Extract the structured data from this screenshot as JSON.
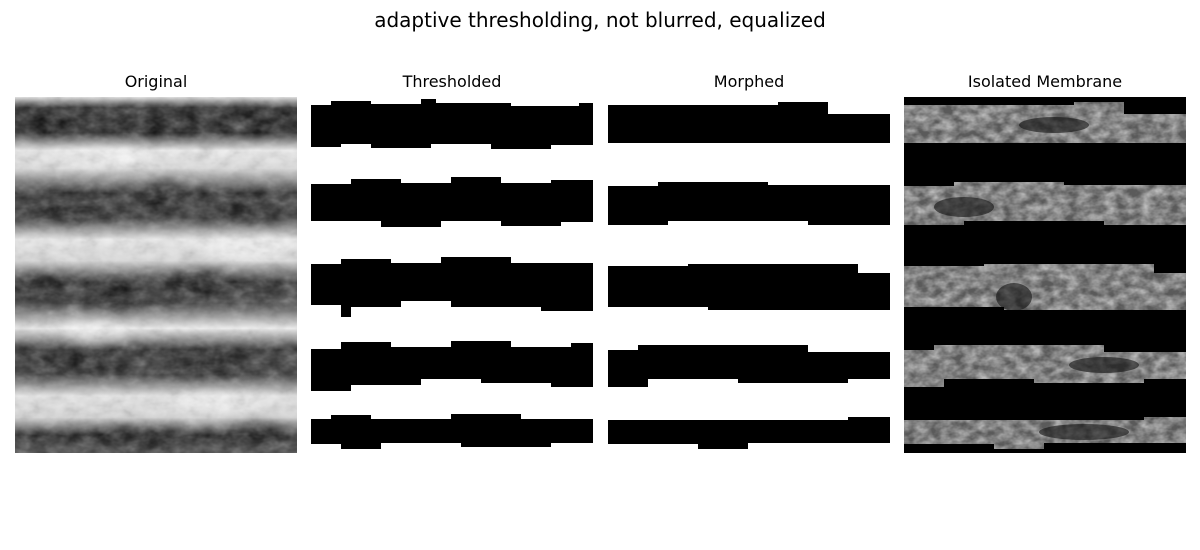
{
  "figure": {
    "title": "adaptive thresholding, not blurred, equalized"
  },
  "panels": [
    {
      "title": "Original"
    },
    {
      "title": "Thresholded"
    },
    {
      "title": "Morphed"
    },
    {
      "title": "Isolated Membrane"
    }
  ]
}
